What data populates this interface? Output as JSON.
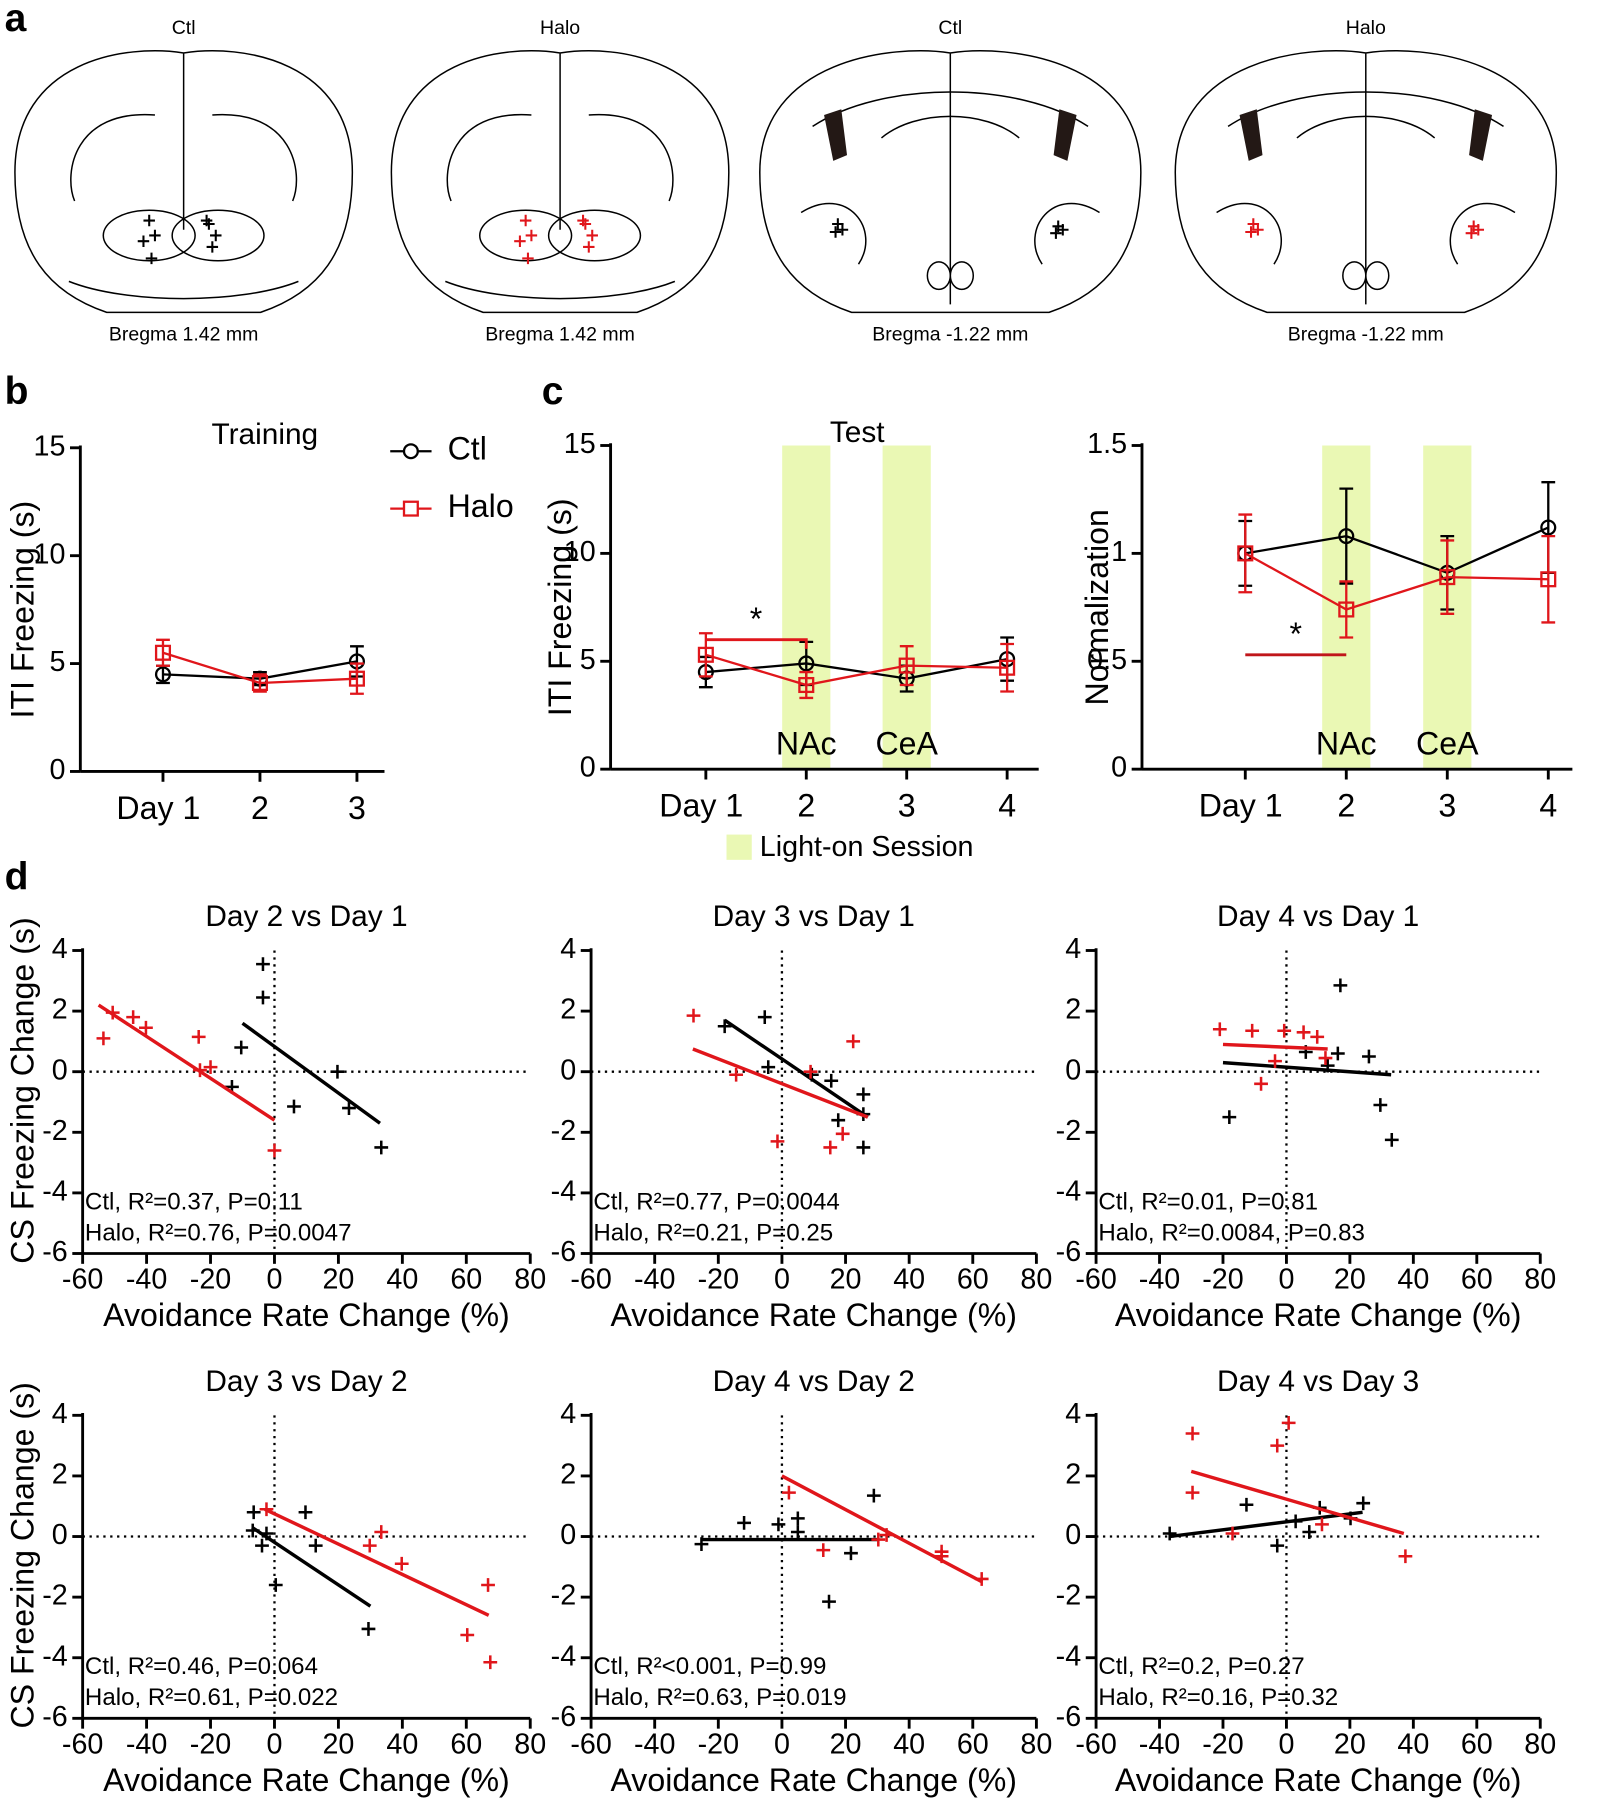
{
  "panel_labels": [
    "a",
    "b",
    "c",
    "d"
  ],
  "brain_sections": [
    {
      "title": "Ctl",
      "title_color": "#000000",
      "bregma": "Bregma 1.42 mm"
    },
    {
      "title": "Halo",
      "title_color": "#e0161b",
      "bregma": "Bregma 1.42 mm"
    },
    {
      "title": "Ctl",
      "title_color": "#000000",
      "bregma": "Bregma -1.22 mm"
    },
    {
      "title": "Halo",
      "title_color": "#e0161b",
      "bregma": "Bregma -1.22 mm"
    }
  ],
  "chart_data": [
    {
      "type": "line",
      "title": "Training",
      "ylabel": "ITI Freezing (s)",
      "categories": [
        "Day 1",
        "2",
        "3"
      ],
      "ylim": [
        0,
        15
      ],
      "yticks": [
        0,
        5,
        10,
        15
      ],
      "legend": "right",
      "series": [
        {
          "name": "Ctl",
          "color": "#000000",
          "marker": "circle",
          "values": [
            4.5,
            4.3,
            5.1
          ],
          "errors": [
            0.4,
            0.3,
            0.7
          ]
        },
        {
          "name": "Halo",
          "color": "#e0161b",
          "marker": "square",
          "values": [
            5.5,
            4.1,
            4.3
          ],
          "errors": [
            0.6,
            0.4,
            0.7
          ]
        }
      ]
    },
    {
      "type": "line",
      "title": "Test",
      "ylabel": "ITI Freezing (s)",
      "categories": [
        "Day 1",
        "2",
        "3",
        "4"
      ],
      "ylim": [
        0,
        15
      ],
      "yticks": [
        0,
        5,
        10,
        15
      ],
      "band_color": "#eaf8b4",
      "bands": [
        {
          "category": "2",
          "label": "NAc"
        },
        {
          "category": "3",
          "label": "CeA"
        }
      ],
      "band_legend": "Light-on Session",
      "annotations": [
        {
          "text": "*",
          "from": "Day 1",
          "to": "2",
          "y": 6,
          "color": "#e0161b"
        }
      ],
      "series": [
        {
          "name": "Ctl",
          "color": "#000000",
          "marker": "circle",
          "values": [
            4.5,
            4.9,
            4.2,
            5.1
          ],
          "errors": [
            0.7,
            1.0,
            0.6,
            1.0
          ]
        },
        {
          "name": "Halo",
          "color": "#e0161b",
          "marker": "square",
          "values": [
            5.3,
            3.9,
            4.8,
            4.7
          ],
          "errors": [
            1.0,
            0.6,
            0.9,
            1.1
          ]
        }
      ]
    },
    {
      "type": "line",
      "ylabel": "Normalization",
      "categories": [
        "Day 1",
        "2",
        "3",
        "4"
      ],
      "ylim": [
        0,
        1.5
      ],
      "yticks": [
        0,
        0.5,
        1,
        1.5
      ],
      "band_color": "#eaf8b4",
      "bands": [
        {
          "category": "2",
          "label": "NAc"
        },
        {
          "category": "3",
          "label": "CeA"
        }
      ],
      "annotations": [
        {
          "text": "*",
          "from": "Day 1",
          "to": "2",
          "y": 0.53,
          "color": "#c0161b"
        }
      ],
      "series": [
        {
          "name": "Ctl",
          "color": "#000000",
          "marker": "circle",
          "values": [
            1.0,
            1.08,
            0.91,
            1.12
          ],
          "errors": [
            0.15,
            0.22,
            0.17,
            0.21
          ]
        },
        {
          "name": "Halo",
          "color": "#e0161b",
          "marker": "square",
          "values": [
            1.0,
            0.74,
            0.89,
            0.88
          ],
          "errors": [
            0.18,
            0.13,
            0.17,
            0.2
          ]
        }
      ]
    },
    {
      "type": "scatter",
      "title": "Day 2 vs Day 1",
      "xlabel": "Avoidance Rate Change (%)",
      "ylabel": "CS Freezing Change (s)",
      "xlim": [
        -60,
        80
      ],
      "xticks": [
        -60,
        -40,
        -20,
        0,
        20,
        40,
        60,
        80
      ],
      "ylim": [
        -6,
        4
      ],
      "yticks": [
        -6,
        -4,
        -2,
        0,
        2,
        4
      ],
      "zero_lines": true,
      "series": [
        {
          "name": "Ctl",
          "color": "#000000",
          "x": [
            -3.6,
            -3.6,
            -10.4,
            -13.3,
            19.7,
            23.3,
            6.1,
            33.4
          ],
          "values": [
            3.55,
            2.45,
            0.8,
            -0.5,
            0,
            -1.2,
            -1.15,
            -2.5
          ],
          "fit_x": [
            -10,
            33
          ],
          "fit_y": [
            1.6,
            -1.7
          ],
          "stat": "Ctl, R²=0.37, P=0.11"
        },
        {
          "name": "Halo",
          "color": "#e0161b",
          "x": [
            -53.5,
            -50.6,
            -44.2,
            -40.2,
            -23.7,
            -23.3,
            -20,
            0
          ],
          "values": [
            1.1,
            1.95,
            1.8,
            1.45,
            1.15,
            0.05,
            0.15,
            -2.6
          ],
          "fit_x": [
            -55,
            0
          ],
          "fit_y": [
            2.2,
            -1.6
          ],
          "stat": "Halo, R²=0.76, P=0.0047"
        }
      ]
    },
    {
      "type": "scatter",
      "title": "Day 3 vs Day 1",
      "xlabel": "Avoidance Rate Change (%)",
      "xlim": [
        -60,
        80
      ],
      "xticks": [
        -60,
        -40,
        -20,
        0,
        20,
        40,
        60,
        80
      ],
      "ylim": [
        -6,
        4
      ],
      "yticks": [
        -6,
        -4,
        -2,
        0,
        2,
        4
      ],
      "zero_lines": true,
      "series": [
        {
          "name": "Ctl",
          "color": "#000000",
          "x": [
            -18,
            -5.4,
            -4.3,
            9.4,
            15.5,
            25.6,
            17.7,
            25.6,
            25.6
          ],
          "values": [
            1.5,
            1.8,
            0.15,
            -0.1,
            -0.3,
            -0.75,
            -1.6,
            -1.4,
            -2.5
          ],
          "fit_x": [
            -18,
            27
          ],
          "fit_y": [
            1.7,
            -1.5
          ],
          "stat": "Ctl, R²=0.77, P=0.0044"
        },
        {
          "name": "Halo",
          "color": "#e0161b",
          "x": [
            -27.8,
            -14.4,
            -1.4,
            9,
            22.4,
            15.2,
            19.1
          ],
          "values": [
            1.85,
            -0.1,
            -2.3,
            0,
            1.0,
            -2.5,
            -2.05
          ],
          "fit_x": [
            -28,
            27
          ],
          "fit_y": [
            0.75,
            -1.5
          ],
          "stat": "Halo, R²=0.21, P=0.25"
        }
      ]
    },
    {
      "type": "scatter",
      "title": "Day 4 vs Day 1",
      "xlabel": "Avoidance Rate Change (%)",
      "xlim": [
        -60,
        80
      ],
      "xticks": [
        -60,
        -40,
        -20,
        0,
        20,
        40,
        60,
        80
      ],
      "ylim": [
        -6,
        4
      ],
      "yticks": [
        -6,
        -4,
        -2,
        0,
        2,
        4
      ],
      "zero_lines": true,
      "series": [
        {
          "name": "Ctl",
          "color": "#000000",
          "x": [
            17,
            -18,
            6.1,
            16.2,
            26,
            13,
            29.6,
            33.2
          ],
          "values": [
            2.85,
            -1.5,
            0.65,
            0.6,
            0.5,
            0.2,
            -1.1,
            -2.25
          ],
          "fit_x": [
            -20,
            33
          ],
          "fit_y": [
            0.3,
            -0.1
          ],
          "stat": "Ctl, R²=0.01, P=0.81"
        },
        {
          "name": "Halo",
          "color": "#e0161b",
          "x": [
            -21,
            -10.8,
            -0.7,
            5.4,
            9.7,
            -8,
            -3.6,
            12.3
          ],
          "values": [
            1.4,
            1.35,
            1.35,
            1.3,
            1.15,
            -0.4,
            0.35,
            0.45
          ],
          "fit_x": [
            -20,
            13
          ],
          "fit_y": [
            0.9,
            0.75
          ],
          "stat": "Halo, R²=0.0084, P=0.83"
        }
      ]
    },
    {
      "type": "scatter",
      "title": "Day 3 vs Day 2",
      "xlabel": "Avoidance Rate Change (%)",
      "ylabel": "CS Freezing Change (s)",
      "xlim": [
        -60,
        80
      ],
      "xticks": [
        -60,
        -40,
        -20,
        0,
        20,
        40,
        60,
        80
      ],
      "ylim": [
        -6,
        4
      ],
      "yticks": [
        -6,
        -4,
        -2,
        0,
        2,
        4
      ],
      "zero_lines": true,
      "series": [
        {
          "name": "Ctl",
          "color": "#000000",
          "x": [
            -6.5,
            -6.8,
            -3.9,
            0.4,
            9.7,
            12.9,
            29.4,
            -2.5
          ],
          "values": [
            0.8,
            0.2,
            -0.3,
            -1.6,
            0.8,
            -0.3,
            -3.05,
            0.1
          ],
          "fit_x": [
            -7,
            30
          ],
          "fit_y": [
            0.3,
            -2.3
          ],
          "stat": "Ctl, R²=0.46, P=0.064"
        },
        {
          "name": "Halo",
          "color": "#e0161b",
          "x": [
            -2.5,
            29.8,
            33.4,
            39.8,
            60.3,
            67.5,
            66.8
          ],
          "values": [
            0.9,
            -0.3,
            0.15,
            -0.9,
            -3.25,
            -4.15,
            -1.6
          ],
          "fit_x": [
            -3,
            67
          ],
          "fit_y": [
            0.9,
            -2.6
          ],
          "stat": "Halo, R²=0.61, P=0.022"
        }
      ]
    },
    {
      "type": "scatter",
      "title": "Day 4 vs Day 2",
      "xlabel": "Avoidance Rate Change (%)",
      "xlim": [
        -60,
        80
      ],
      "xticks": [
        -60,
        -40,
        -20,
        0,
        20,
        40,
        60,
        80
      ],
      "ylim": [
        -6,
        4
      ],
      "yticks": [
        -6,
        -4,
        -2,
        0,
        2,
        4
      ],
      "zero_lines": true,
      "series": [
        {
          "name": "Ctl",
          "color": "#000000",
          "x": [
            -25.3,
            -11.9,
            -1.1,
            5,
            5,
            21.7,
            28.9,
            14.8
          ],
          "values": [
            -0.25,
            0.45,
            0.4,
            0.6,
            0.15,
            -0.55,
            1.35,
            -2.15
          ],
          "fit_x": [
            -25,
            30
          ],
          "fit_y": [
            -0.1,
            -0.1
          ],
          "stat": "Ctl, R²<0.001, P=0.99"
        },
        {
          "name": "Halo",
          "color": "#e0161b",
          "x": [
            2.2,
            13,
            30.3,
            32.9,
            50.2,
            50.2,
            62.8
          ],
          "values": [
            1.45,
            -0.45,
            -0.1,
            0.05,
            -0.5,
            -0.65,
            -1.4
          ],
          "fit_x": [
            0,
            63
          ],
          "fit_y": [
            2,
            -1.5
          ],
          "stat": "Halo, R²=0.63, P=0.019"
        }
      ]
    },
    {
      "type": "scatter",
      "title": "Day 4 vs Day 3",
      "xlabel": "Avoidance Rate Change (%)",
      "xlim": [
        -60,
        80
      ],
      "xticks": [
        -60,
        -40,
        -20,
        0,
        20,
        40,
        60,
        80
      ],
      "ylim": [
        -6,
        4
      ],
      "yticks": [
        -6,
        -4,
        -2,
        0,
        2,
        4
      ],
      "zero_lines": true,
      "series": [
        {
          "name": "Ctl",
          "color": "#000000",
          "x": [
            -36.8,
            -12.6,
            -2.9,
            2.9,
            7.2,
            10.5,
            20.2,
            24.2
          ],
          "values": [
            0.1,
            1.05,
            -0.3,
            0.5,
            0.15,
            0.95,
            0.6,
            1.1
          ],
          "fit_x": [
            -37,
            24
          ],
          "fit_y": [
            0,
            0.8
          ],
          "stat": "Ctl, R²=0.2, P=0.27"
        },
        {
          "name": "Halo",
          "color": "#e0161b",
          "x": [
            -29.6,
            -29.6,
            -17,
            -2.9,
            0.7,
            11.2,
            37.5
          ],
          "values": [
            3.4,
            1.45,
            0.1,
            3.0,
            3.75,
            0.4,
            -0.65
          ],
          "fit_x": [
            -30,
            37
          ],
          "fit_y": [
            2.15,
            0.1
          ],
          "stat": "Halo, R²=0.16, P=0.32"
        }
      ]
    }
  ]
}
